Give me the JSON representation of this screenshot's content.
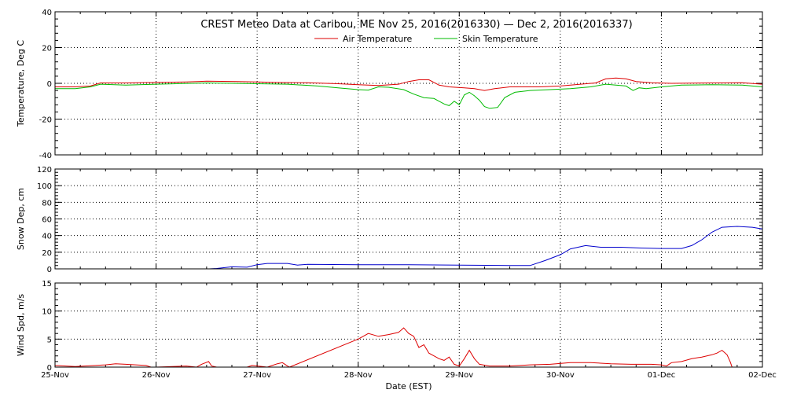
{
  "figure": {
    "title": "CREST Meteo Data at Caribou, ME    Nov 25, 2016(2016330) — Dec  2, 2016(2016337)",
    "xlabel": "Date (EST)",
    "legend": {
      "air": "Air Temperature",
      "skin": "Skin Temperature"
    }
  },
  "chart_data": [
    {
      "type": "line",
      "ylabel": "Temperature, Deg C",
      "xlim": [
        0,
        7
      ],
      "ylim": [
        -40,
        40
      ],
      "yticks": [
        "-40",
        "-20",
        "0",
        "20",
        "40"
      ],
      "grid": true,
      "legend_position": "top-center",
      "series": [
        {
          "name": "Air Temperature",
          "color": "#dd0000",
          "points": [
            [
              0.0,
              -2
            ],
            [
              0.2,
              -2
            ],
            [
              0.35,
              -1.5
            ],
            [
              0.45,
              0.2
            ],
            [
              0.7,
              0.2
            ],
            [
              1.0,
              0.5
            ],
            [
              1.3,
              0.8
            ],
            [
              1.5,
              1.2
            ],
            [
              1.8,
              1.0
            ],
            [
              2.0,
              0.8
            ],
            [
              2.2,
              0.5
            ],
            [
              2.5,
              0.3
            ],
            [
              2.8,
              -0.2
            ],
            [
              3.0,
              -0.8
            ],
            [
              3.2,
              -1.2
            ],
            [
              3.4,
              -0.5
            ],
            [
              3.5,
              1.0
            ],
            [
              3.6,
              2.0
            ],
            [
              3.7,
              2.0
            ],
            [
              3.8,
              -1.0
            ],
            [
              3.9,
              -2.0
            ],
            [
              4.05,
              -2.5
            ],
            [
              4.15,
              -3.0
            ],
            [
              4.25,
              -4.0
            ],
            [
              4.35,
              -3.0
            ],
            [
              4.5,
              -2.0
            ],
            [
              4.8,
              -2.0
            ],
            [
              5.0,
              -1.5
            ],
            [
              5.2,
              -0.5
            ],
            [
              5.35,
              0.2
            ],
            [
              5.45,
              2.5
            ],
            [
              5.55,
              3.0
            ],
            [
              5.65,
              2.5
            ],
            [
              5.75,
              1.0
            ],
            [
              5.9,
              0.3
            ],
            [
              6.1,
              0.0
            ],
            [
              6.5,
              0.2
            ],
            [
              6.8,
              0.3
            ],
            [
              7.0,
              -0.5
            ]
          ]
        },
        {
          "name": "Skin Temperature",
          "color": "#00bb00",
          "points": [
            [
              0.0,
              -3
            ],
            [
              0.2,
              -3
            ],
            [
              0.35,
              -2
            ],
            [
              0.45,
              -0.5
            ],
            [
              0.7,
              -1
            ],
            [
              1.0,
              -0.5
            ],
            [
              1.5,
              0.2
            ],
            [
              2.0,
              -0.2
            ],
            [
              2.3,
              -0.5
            ],
            [
              2.6,
              -1.5
            ],
            [
              2.8,
              -2.5
            ],
            [
              3.0,
              -3.5
            ],
            [
              3.1,
              -3.8
            ],
            [
              3.2,
              -2.0
            ],
            [
              3.3,
              -2.2
            ],
            [
              3.45,
              -3.5
            ],
            [
              3.55,
              -6.0
            ],
            [
              3.65,
              -8.0
            ],
            [
              3.75,
              -8.5
            ],
            [
              3.85,
              -11.5
            ],
            [
              3.9,
              -12.5
            ],
            [
              3.95,
              -10.0
            ],
            [
              4.0,
              -12.0
            ],
            [
              4.05,
              -6.5
            ],
            [
              4.1,
              -5.0
            ],
            [
              4.15,
              -7.0
            ],
            [
              4.2,
              -9.5
            ],
            [
              4.25,
              -13.0
            ],
            [
              4.3,
              -14.0
            ],
            [
              4.38,
              -13.5
            ],
            [
              4.45,
              -8.0
            ],
            [
              4.55,
              -5.0
            ],
            [
              4.7,
              -4.0
            ],
            [
              4.9,
              -3.5
            ],
            [
              5.1,
              -3.0
            ],
            [
              5.3,
              -2.0
            ],
            [
              5.45,
              -0.5
            ],
            [
              5.55,
              -1.0
            ],
            [
              5.65,
              -1.5
            ],
            [
              5.72,
              -4.0
            ],
            [
              5.78,
              -2.5
            ],
            [
              5.85,
              -3.0
            ],
            [
              6.0,
              -2.0
            ],
            [
              6.2,
              -1.0
            ],
            [
              6.5,
              -0.8
            ],
            [
              6.8,
              -1.0
            ],
            [
              7.0,
              -2.0
            ]
          ]
        }
      ]
    },
    {
      "type": "line",
      "ylabel": "Snow Dep, cm",
      "xlim": [
        0,
        7
      ],
      "ylim": [
        0,
        120
      ],
      "yticks": [
        "0",
        "20",
        "40",
        "60",
        "80",
        "100",
        "120"
      ],
      "grid": true,
      "series": [
        {
          "name": "Snow Depth",
          "color": "#0000cc",
          "points": [
            [
              0.78,
              -1
            ],
            [
              1.0,
              -1
            ],
            [
              1.2,
              -0.5
            ],
            [
              1.45,
              -0.5
            ],
            [
              1.6,
              0.5
            ],
            [
              1.75,
              2.5
            ],
            [
              1.9,
              2.0
            ],
            [
              2.0,
              5.0
            ],
            [
              2.1,
              6.5
            ],
            [
              2.3,
              6.5
            ],
            [
              2.4,
              4.5
            ],
            [
              2.5,
              5.5
            ],
            [
              3.0,
              5.0
            ],
            [
              3.5,
              5.0
            ],
            [
              4.0,
              4.5
            ],
            [
              4.5,
              4.0
            ],
            [
              4.7,
              4.0
            ],
            [
              4.85,
              10.0
            ],
            [
              5.0,
              17.0
            ],
            [
              5.1,
              24.0
            ],
            [
              5.25,
              28.0
            ],
            [
              5.4,
              26.0
            ],
            [
              5.6,
              26.0
            ],
            [
              5.8,
              25.0
            ],
            [
              6.0,
              24.5
            ],
            [
              6.2,
              24.5
            ],
            [
              6.3,
              28.0
            ],
            [
              6.4,
              35.0
            ],
            [
              6.5,
              44.0
            ],
            [
              6.6,
              50.0
            ],
            [
              6.75,
              51.0
            ],
            [
              6.9,
              50.0
            ],
            [
              7.0,
              48.0
            ]
          ]
        }
      ]
    },
    {
      "type": "line",
      "ylabel": "Wind Spd, m/s",
      "xlim": [
        0,
        7
      ],
      "ylim": [
        0,
        15
      ],
      "yticks": [
        "0",
        "5",
        "10",
        "15"
      ],
      "xticks": [
        "25-Nov",
        "26-Nov",
        "27-Nov",
        "28-Nov",
        "29-Nov",
        "30-Nov",
        "01-Dec",
        "02-Dec"
      ],
      "grid": true,
      "series": [
        {
          "name": "Wind Speed",
          "color": "#dd0000",
          "points": [
            [
              0.0,
              0.3
            ],
            [
              0.2,
              0.1
            ],
            [
              0.4,
              0.3
            ],
            [
              0.5,
              0.4
            ],
            [
              0.6,
              0.6
            ],
            [
              0.7,
              0.5
            ],
            [
              0.8,
              0.4
            ],
            [
              0.9,
              0.3
            ],
            [
              0.95,
              0
            ],
            [
              1.0,
              0
            ],
            [
              1.3,
              0.2
            ],
            [
              1.4,
              0
            ],
            [
              1.45,
              0.5
            ],
            [
              1.52,
              1.0
            ],
            [
              1.55,
              0.2
            ],
            [
              1.6,
              0
            ],
            [
              1.9,
              0
            ],
            [
              1.95,
              0.3
            ],
            [
              2.05,
              0.1
            ],
            [
              2.1,
              0
            ],
            [
              2.15,
              0.3
            ],
            [
              2.2,
              0.6
            ],
            [
              2.25,
              0.8
            ],
            [
              2.3,
              0.2
            ],
            [
              2.32,
              0
            ],
            [
              3.0,
              5.0
            ],
            [
              3.05,
              5.5
            ],
            [
              3.1,
              6.0
            ],
            [
              3.2,
              5.5
            ],
            [
              3.3,
              5.8
            ],
            [
              3.4,
              6.2
            ],
            [
              3.45,
              7.0
            ],
            [
              3.5,
              6.0
            ],
            [
              3.55,
              5.5
            ],
            [
              3.6,
              3.5
            ],
            [
              3.65,
              4.0
            ],
            [
              3.7,
              2.5
            ],
            [
              3.75,
              2.0
            ],
            [
              3.8,
              1.5
            ],
            [
              3.85,
              1.2
            ],
            [
              3.9,
              1.8
            ],
            [
              3.95,
              0.5
            ],
            [
              4.0,
              0.2
            ],
            [
              4.05,
              1.5
            ],
            [
              4.1,
              3.0
            ],
            [
              4.15,
              1.5
            ],
            [
              4.2,
              0.5
            ],
            [
              4.3,
              0.2
            ],
            [
              4.5,
              0.2
            ],
            [
              4.7,
              0.4
            ],
            [
              4.9,
              0.5
            ],
            [
              5.1,
              0.8
            ],
            [
              5.3,
              0.8
            ],
            [
              5.5,
              0.6
            ],
            [
              5.7,
              0.5
            ],
            [
              5.9,
              0.5
            ],
            [
              6.0,
              0.4
            ],
            [
              6.05,
              0.2
            ],
            [
              6.1,
              0.8
            ],
            [
              6.2,
              1.0
            ],
            [
              6.3,
              1.5
            ],
            [
              6.4,
              1.8
            ],
            [
              6.5,
              2.2
            ],
            [
              6.55,
              2.5
            ],
            [
              6.6,
              3.0
            ],
            [
              6.65,
              2.2
            ],
            [
              6.68,
              1.0
            ],
            [
              6.7,
              0
            ]
          ]
        }
      ]
    }
  ]
}
